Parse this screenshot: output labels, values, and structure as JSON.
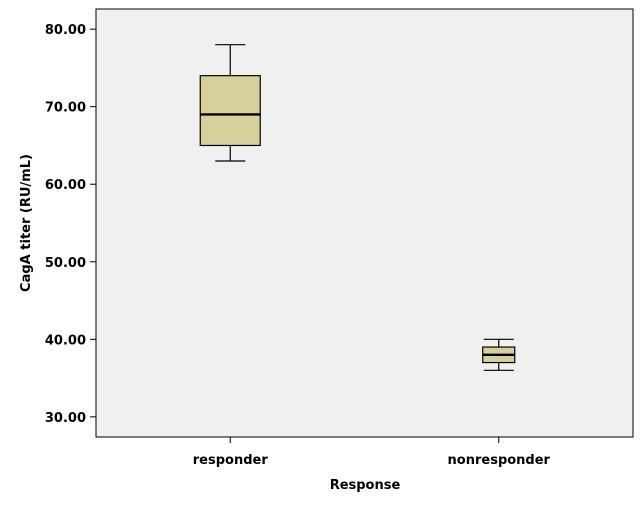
{
  "chart_data": {
    "type": "boxplot",
    "xlabel": "Response",
    "ylabel": "CagA titer (RU/mL)",
    "ylim": [
      27.4,
      82.6
    ],
    "yticks": [
      "30.00",
      "40.00",
      "50.00",
      "60.00",
      "70.00",
      "80.00"
    ],
    "ytick_values": [
      30,
      40,
      50,
      60,
      70,
      80
    ],
    "categories": [
      "responder",
      "nonresponder"
    ],
    "boxes": [
      {
        "category": "responder",
        "min": 63,
        "q1": 65,
        "median": 69,
        "q3": 74,
        "max": 78
      },
      {
        "category": "nonresponder",
        "min": 36,
        "q1": 37,
        "median": 38,
        "q3": 39,
        "max": 40
      }
    ],
    "grid": false,
    "colors": {
      "box_fill": "#d6d09a",
      "plot_bg": "#f0f0f0",
      "line": "#000000"
    }
  }
}
